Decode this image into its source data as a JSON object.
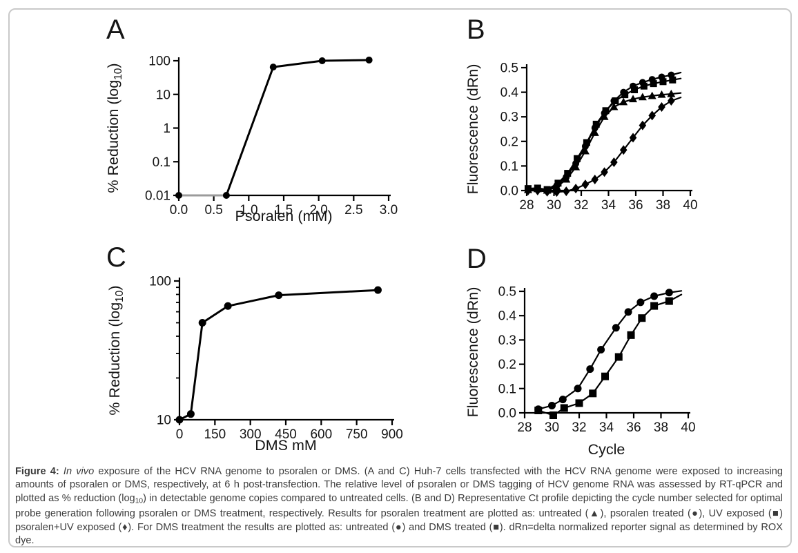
{
  "ink_color": "#000000",
  "caption_color": "#3b3b3b",
  "card_border_color": "#c9c9c9",
  "chart_data": [
    {
      "panel_label": "A",
      "type": "line",
      "title": "",
      "xlabel": "Psoralen (mM)",
      "ylabel": "% Reduction (log_{10})",
      "x_scale": "linear",
      "y_scale": "log",
      "xlim": [
        0,
        3
      ],
      "ylim": [
        0.01,
        100
      ],
      "xticks": [
        0,
        0.5,
        1,
        1.5,
        2,
        2.5,
        3
      ],
      "xtick_labels": [
        "0.0",
        "0.5",
        "1.0",
        "1.5",
        "2.0",
        "2.5",
        "3.0"
      ],
      "yticks": [
        100,
        10,
        1,
        0.1,
        0.01
      ],
      "ytick_labels": [
        "100",
        "10",
        "1",
        "0.1",
        "0.01"
      ],
      "grid": false,
      "legend": "none",
      "series": [
        {
          "name": "psoralen treated",
          "marker": "circle",
          "x": [
            0,
            0.68,
            1.35,
            2.05,
            2.72
          ],
          "y": [
            0.01,
            0.01,
            65,
            100,
            105
          ],
          "split": 1,
          "flat_color": "#9b9b9b"
        }
      ]
    },
    {
      "panel_label": "B",
      "type": "line",
      "title": "",
      "xlabel": "",
      "ylabel": "Fluorescence (dRn)",
      "x_scale": "linear",
      "y_scale": "linear",
      "xlim": [
        28,
        40
      ],
      "ylim": [
        0,
        0.5
      ],
      "xticks": [
        28,
        30,
        32,
        34,
        36,
        38,
        40
      ],
      "xtick_labels": [
        "28",
        "30",
        "32",
        "34",
        "36",
        "38",
        "40"
      ],
      "yticks": [
        0,
        0.1,
        0.2,
        0.3,
        0.4,
        0.5
      ],
      "ytick_labels": [
        "0.0",
        "0.1",
        "0.2",
        "0.3",
        "0.4",
        "0.5"
      ],
      "grid": false,
      "legend": "none",
      "series": [
        {
          "name": "untreated",
          "marker": "triangle",
          "x": [
            28.1,
            28.8,
            29.5,
            30.2,
            30.9,
            31.6,
            32.3,
            33,
            33.7,
            34.4,
            35.1,
            35.8,
            36.5,
            37.2,
            37.9,
            38.6
          ],
          "y": [
            0.002,
            0.006,
            0,
            0.015,
            0.045,
            0.095,
            0.16,
            0.235,
            0.3,
            0.34,
            0.36,
            0.372,
            0.38,
            0.385,
            0.39,
            0.393
          ],
          "tail": [
            39.3,
            0.397
          ]
        },
        {
          "name": "UV exposed",
          "marker": "square",
          "x": [
            28.1,
            28.8,
            29.5,
            30.3,
            31,
            31.7,
            32.4,
            33.1,
            33.8,
            34.5,
            35.2,
            35.9,
            36.6,
            37.3,
            38,
            38.7
          ],
          "y": [
            0.008,
            0.01,
            0.004,
            0.03,
            0.07,
            0.13,
            0.195,
            0.27,
            0.325,
            0.365,
            0.39,
            0.41,
            0.425,
            0.435,
            0.443,
            0.45
          ],
          "tail": [
            39.3,
            0.456
          ]
        },
        {
          "name": "psoralen treated",
          "marker": "circle",
          "x": [
            28.1,
            28.8,
            29.5,
            30.2,
            30.9,
            31.6,
            32.3,
            33,
            33.7,
            34.4,
            35.1,
            35.8,
            36.5,
            37.2,
            37.9,
            38.6
          ],
          "y": [
            0.005,
            0.008,
            0.002,
            0.02,
            0.055,
            0.11,
            0.18,
            0.255,
            0.315,
            0.365,
            0.4,
            0.425,
            0.44,
            0.452,
            0.462,
            0.47
          ],
          "tail": [
            39.3,
            0.48
          ]
        },
        {
          "name": "psoralen+UV exposed",
          "marker": "diamond",
          "x": [
            28.1,
            28.8,
            29.5,
            30.2,
            30.9,
            31.6,
            32.3,
            33,
            33.7,
            34.4,
            35.1,
            35.8,
            36.5,
            37.2,
            37.9,
            38.6
          ],
          "y": [
            0,
            0,
            -0.005,
            -0.006,
            -0.003,
            0.008,
            0.025,
            0.045,
            0.075,
            0.115,
            0.165,
            0.215,
            0.265,
            0.305,
            0.34,
            0.365
          ],
          "tail": [
            39.3,
            0.379
          ]
        }
      ]
    },
    {
      "panel_label": "C",
      "type": "line",
      "title": "",
      "xlabel": "DMS mM",
      "ylabel": "% Reduction (log_{10})",
      "x_scale": "linear",
      "y_scale": "log",
      "xlim": [
        0,
        900
      ],
      "ylim": [
        10,
        100
      ],
      "xticks": [
        0,
        150,
        300,
        450,
        600,
        750,
        900
      ],
      "xtick_labels": [
        "0",
        "150",
        "300",
        "450",
        "600",
        "750",
        "900"
      ],
      "yticks": [
        100,
        10
      ],
      "ytick_labels": [
        "100",
        "10"
      ],
      "yticks_minor": [
        20,
        30,
        40,
        50,
        60,
        70,
        80,
        90
      ],
      "grid": false,
      "legend": "none",
      "series": [
        {
          "name": "DMS treated",
          "marker": "circle",
          "x": [
            0,
            48,
            97,
            205,
            420,
            840
          ],
          "y": [
            10,
            11,
            50,
            66,
            79,
            86
          ]
        }
      ]
    },
    {
      "panel_label": "D",
      "type": "line",
      "title": "",
      "xlabel": "Cycle",
      "ylabel": "Fluorescence (dRn)",
      "x_scale": "linear",
      "y_scale": "linear",
      "xlim": [
        28,
        40
      ],
      "ylim": [
        0,
        0.5
      ],
      "xticks": [
        28,
        30,
        32,
        34,
        36,
        38,
        40
      ],
      "xtick_labels": [
        "28",
        "30",
        "32",
        "34",
        "36",
        "38",
        "40"
      ],
      "yticks": [
        0,
        0.1,
        0.2,
        0.3,
        0.4,
        0.5
      ],
      "ytick_labels": [
        "0.0",
        "0.1",
        "0.2",
        "0.3",
        "0.4",
        "0.5"
      ],
      "grid": false,
      "legend": "none",
      "series": [
        {
          "name": "untreated",
          "marker": "circle",
          "x": [
            29,
            30,
            30.8,
            31.9,
            32.8,
            33.6,
            34.7,
            35.6,
            36.5,
            37.5,
            38.6
          ],
          "y": [
            0.015,
            0.03,
            0.055,
            0.1,
            0.18,
            0.26,
            0.35,
            0.415,
            0.455,
            0.48,
            0.495
          ],
          "tail": [
            39.5,
            0.502
          ]
        },
        {
          "name": "DMS treated",
          "marker": "square",
          "x": [
            29,
            30.1,
            30.9,
            32,
            33,
            33.9,
            34.9,
            35.8,
            36.6,
            37.5,
            38.6
          ],
          "y": [
            0.01,
            -0.01,
            0.02,
            0.04,
            0.08,
            0.15,
            0.23,
            0.32,
            0.39,
            0.44,
            0.46
          ],
          "tail": [
            39.5,
            0.487
          ]
        }
      ]
    }
  ],
  "caption": {
    "segments": [
      {
        "text": "Figure 4:",
        "bold": true
      },
      {
        "text": " "
      },
      {
        "text": "In vivo",
        "italic": true
      },
      {
        "text": " exposure of the HCV RNA genome to psoralen or DMS. (A and C) Huh-7 cells transfected with the HCV RNA genome were exposed to increasing amounts of psoralen or DMS, respectively, at 6 h post-transfection. The relative level of psoralen or DMS tagging of HCV genome RNA was assessed by RT-qPCR and plotted as % reduction (log"
      },
      {
        "text": "10",
        "sub": true
      },
      {
        "text": ") in detectable genome copies compared to untreated cells. (B and D) Representative Ct profile depicting the cycle number selected for optimal probe generation following psoralen or DMS treatment, respectively. Results for psoralen treatment are plotted as: untreated (▲), psoralen treated (●), UV exposed (■) psoralen+UV exposed (♦). For DMS treatment the results are plotted as: untreated (●) and DMS treated (■). dRn=delta normalized reporter signal as determined by ROX dye."
      }
    ]
  }
}
